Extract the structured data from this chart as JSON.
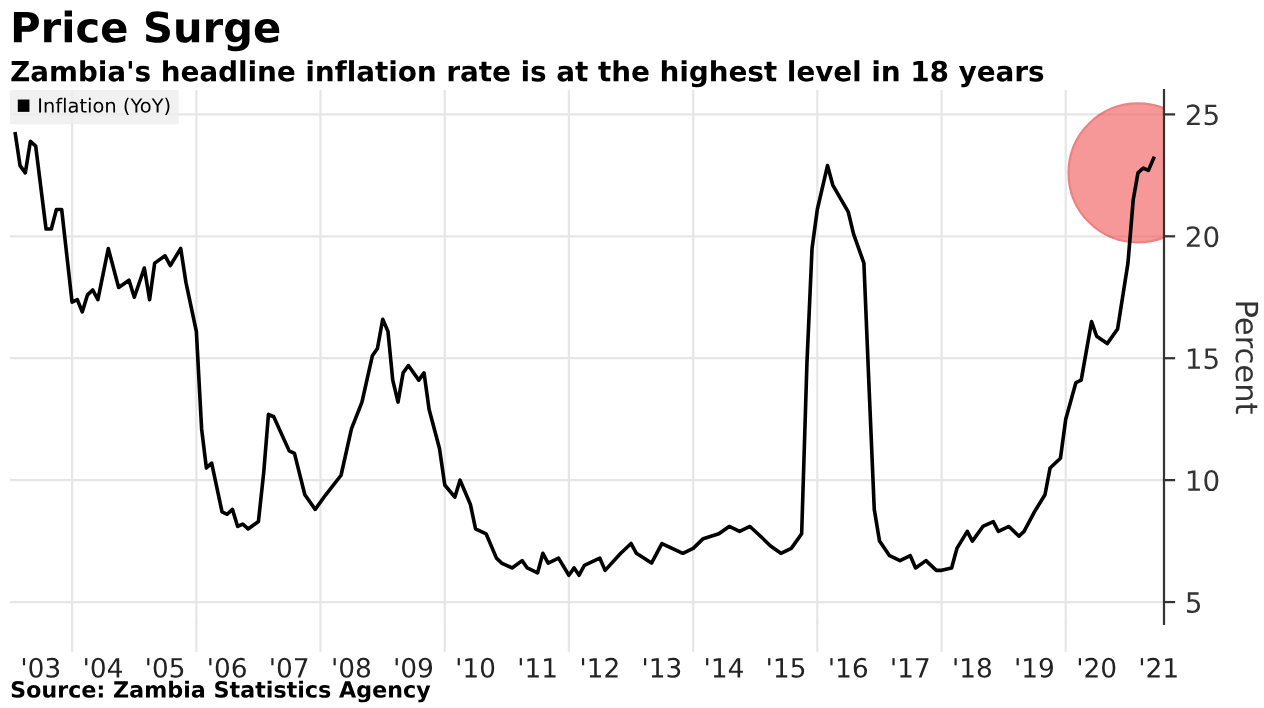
{
  "chart_data": {
    "type": "line",
    "title": "Price Surge",
    "subtitle": "Zambia's headline inflation rate is at the highest level in 18 years",
    "ylabel": "Percent",
    "annotations": [
      "Source: Zambia Statistics Agency"
    ],
    "series": [
      {
        "name": "Inflation (YoY)",
        "color": "#000000",
        "x": [
          "2003-02",
          "2003-03",
          "2003-04",
          "2003-05",
          "2003-06",
          "2003-08",
          "2003-09",
          "2003-10",
          "2003-11",
          "2004-01",
          "2004-02",
          "2004-03",
          "2004-04",
          "2004-05",
          "2004-06",
          "2004-08",
          "2004-10",
          "2004-12",
          "2005-01",
          "2005-03",
          "2005-04",
          "2005-05",
          "2005-07",
          "2005-08",
          "2005-10",
          "2005-11",
          "2006-01",
          "2006-02",
          "2006-03",
          "2006-04",
          "2006-06",
          "2006-07",
          "2006-08",
          "2006-09",
          "2006-10",
          "2006-11",
          "2007-01",
          "2007-02",
          "2007-03",
          "2007-04",
          "2007-07",
          "2007-08",
          "2007-10",
          "2007-12",
          "2008-02",
          "2008-05",
          "2008-07",
          "2008-09",
          "2008-11",
          "2008-12",
          "2009-01",
          "2009-02",
          "2009-03",
          "2009-04",
          "2009-05",
          "2009-06",
          "2009-08",
          "2009-09",
          "2009-10",
          "2009-12",
          "2010-01",
          "2010-03",
          "2010-04",
          "2010-06",
          "2010-07",
          "2010-09",
          "2010-11",
          "2010-12",
          "2011-02",
          "2011-04",
          "2011-05",
          "2011-07",
          "2011-08",
          "2011-09",
          "2011-11",
          "2012-01",
          "2012-02",
          "2012-03",
          "2012-04",
          "2012-07",
          "2012-08",
          "2012-11",
          "2013-01",
          "2013-02",
          "2013-05",
          "2013-07",
          "2013-11",
          "2014-01",
          "2014-03",
          "2014-06",
          "2014-08",
          "2014-10",
          "2014-12",
          "2015-02",
          "2015-04",
          "2015-06",
          "2015-08",
          "2015-10",
          "2015-11",
          "2015-12",
          "2016-01",
          "2016-03",
          "2016-04",
          "2016-07",
          "2016-08",
          "2016-10",
          "2016-11",
          "2016-12",
          "2017-01",
          "2017-03",
          "2017-05",
          "2017-07",
          "2017-08",
          "2017-10",
          "2017-12",
          "2018-01",
          "2018-03",
          "2018-04",
          "2018-06",
          "2018-07",
          "2018-09",
          "2018-11",
          "2018-12",
          "2019-02",
          "2019-04",
          "2019-05",
          "2019-07",
          "2019-09",
          "2019-10",
          "2019-12",
          "2020-01",
          "2020-03",
          "2020-04",
          "2020-06",
          "2020-07",
          "2020-09",
          "2020-11",
          "2021-01",
          "2021-02",
          "2021-03",
          "2021-04",
          "2021-05",
          "2021-06"
        ],
        "values": [
          24.2,
          22.9,
          22.6,
          23.9,
          23.7,
          20.3,
          20.3,
          21.1,
          21.1,
          17.3,
          17.4,
          16.9,
          17.6,
          17.8,
          17.4,
          19.5,
          17.9,
          18.2,
          17.5,
          18.7,
          17.4,
          18.9,
          19.2,
          18.8,
          19.5,
          18.1,
          16.1,
          12.1,
          10.5,
          10.7,
          8.7,
          8.6,
          8.8,
          8.1,
          8.2,
          8.0,
          8.3,
          10.3,
          12.7,
          12.6,
          11.2,
          11.1,
          9.4,
          8.8,
          9.4,
          10.2,
          12.1,
          13.2,
          15.1,
          15.4,
          16.6,
          16.1,
          14.1,
          13.2,
          14.4,
          14.7,
          14.1,
          14.4,
          12.9,
          11.3,
          9.8,
          9.3,
          10.0,
          9.0,
          8.0,
          7.8,
          6.8,
          6.6,
          6.4,
          6.7,
          6.4,
          6.2,
          7.0,
          6.6,
          6.8,
          6.1,
          6.4,
          6.1,
          6.5,
          6.8,
          6.3,
          7.0,
          7.4,
          7.0,
          6.6,
          7.4,
          7.0,
          7.2,
          7.6,
          7.8,
          8.1,
          7.9,
          8.1,
          7.7,
          7.3,
          7.0,
          7.2,
          7.8,
          14.8,
          19.5,
          21.1,
          22.9,
          22.1,
          21.0,
          20.1,
          18.9,
          13.7,
          8.8,
          7.5,
          6.9,
          6.7,
          6.9,
          6.4,
          6.7,
          6.3,
          6.3,
          6.4,
          7.2,
          7.9,
          7.5,
          8.1,
          8.3,
          7.9,
          8.1,
          7.7,
          7.9,
          8.7,
          9.4,
          10.5,
          10.9,
          12.5,
          14.0,
          14.1,
          16.5,
          15.9,
          15.6,
          16.2,
          18.9,
          21.5,
          22.6,
          22.8,
          22.7,
          23.2
        ]
      }
    ],
    "xlim": [
      "2003-01",
      "2021-08"
    ],
    "ylim": [
      4.1,
      26
    ],
    "xticks": [
      {
        "value": "2003-07",
        "label": "'03"
      },
      {
        "value": "2004",
        "label": null
      },
      {
        "value": "2004-07",
        "label": "'04"
      },
      {
        "value": "2005-07",
        "label": "'05"
      },
      {
        "value": "2006",
        "label": null
      },
      {
        "value": "2006-07",
        "label": "'06"
      },
      {
        "value": "2007-07",
        "label": "'07"
      },
      {
        "value": "2008",
        "label": null
      },
      {
        "value": "2008-07",
        "label": "'08"
      },
      {
        "value": "2009-07",
        "label": "'09"
      },
      {
        "value": "2010",
        "label": null
      },
      {
        "value": "2010-07",
        "label": "'10"
      },
      {
        "value": "2011-07",
        "label": "'11"
      },
      {
        "value": "2012",
        "label": null
      },
      {
        "value": "2012-07",
        "label": "'12"
      },
      {
        "value": "2013-07",
        "label": "'13"
      },
      {
        "value": "2014",
        "label": null
      },
      {
        "value": "2014-07",
        "label": "'14"
      },
      {
        "value": "2015-07",
        "label": "'15"
      },
      {
        "value": "2016",
        "label": null
      },
      {
        "value": "2016-07",
        "label": "'16"
      },
      {
        "value": "2017-07",
        "label": "'17"
      },
      {
        "value": "2018",
        "label": null
      },
      {
        "value": "2018-07",
        "label": "'18"
      },
      {
        "value": "2019-07",
        "label": "'19"
      },
      {
        "value": "2020",
        "label": null
      },
      {
        "value": "2020-07",
        "label": "'20"
      },
      {
        "value": "2021-07",
        "label": "'21"
      }
    ],
    "yticks": [
      5,
      10,
      15,
      20,
      25
    ],
    "grid": true,
    "legend": "top left",
    "marker": "none",
    "line_style": "solid"
  }
}
